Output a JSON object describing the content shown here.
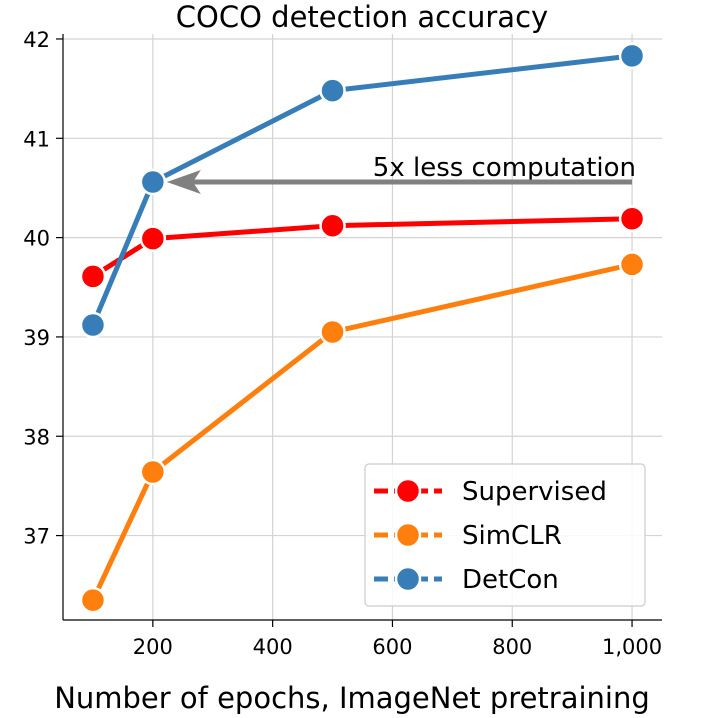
{
  "chart_data": {
    "type": "line",
    "title": "COCO detection accuracy",
    "xlabel": "Number of epochs, ImageNet pretraining",
    "ylabel": "",
    "xlim": [
      50,
      1050
    ],
    "ylim": [
      36.15,
      42.05
    ],
    "xticks": [
      200,
      400,
      600,
      800,
      1000
    ],
    "xtick_labels": [
      "200",
      "400",
      "600",
      "800",
      "1,000"
    ],
    "yticks": [
      37,
      38,
      39,
      40,
      41,
      42
    ],
    "ytick_labels": [
      "37",
      "38",
      "39",
      "40",
      "41",
      "42"
    ],
    "grid": true,
    "legend_position": "lower-right",
    "series": [
      {
        "name": "Supervised",
        "color": "#ff0000",
        "x": [
          100,
          200,
          500,
          1000
        ],
        "values": [
          39.61,
          39.99,
          40.12,
          40.19
        ]
      },
      {
        "name": "SimCLR",
        "color": "#ff7f0e",
        "x": [
          100,
          200,
          500,
          1000
        ],
        "values": [
          36.35,
          37.64,
          39.05,
          39.73
        ]
      },
      {
        "name": "DetCon",
        "color": "#377eb8",
        "x": [
          100,
          200,
          500,
          1000
        ],
        "values": [
          39.12,
          40.56,
          41.48,
          41.83
        ]
      }
    ],
    "annotation": {
      "text": "5x less computation",
      "from_x": 1000,
      "to_x": 200,
      "y": 40.56,
      "color": "#808080"
    }
  }
}
